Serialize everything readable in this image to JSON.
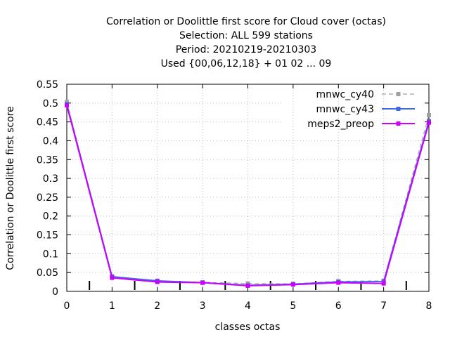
{
  "chart_data": {
    "type": "line",
    "title": [
      "Correlation or Doolittle first score  for Cloud cover (octas)",
      "Selection: ALL    599 stations",
      "Period: 20210219-20210303",
      "Used {00,06,12,18} + 01 02 ... 09"
    ],
    "xlabel": "classes octas",
    "ylabel": "Correlation or Doolittle first score",
    "xlim": [
      0,
      8
    ],
    "ylim": [
      0,
      0.55
    ],
    "x": [
      0,
      1,
      2,
      3,
      4,
      5,
      6,
      7,
      8
    ],
    "xticks": [
      "0",
      "1",
      "2",
      "3",
      "4",
      "5",
      "6",
      "7",
      "8"
    ],
    "yticks": [
      "0",
      "0.05",
      "0.1",
      "0.15",
      "0.2",
      "0.25",
      "0.3",
      "0.35",
      "0.4",
      "0.45",
      "0.5",
      "0.55"
    ],
    "ytick_values": [
      0,
      0.05,
      0.1,
      0.15,
      0.2,
      0.25,
      0.3,
      0.35,
      0.4,
      0.45,
      0.5,
      0.55
    ],
    "minor_xticks": [
      0.5,
      1.5,
      2.5,
      3.5,
      4.5,
      5.5,
      6.5,
      7.5
    ],
    "grid": true,
    "legend_position": "top-right",
    "series": [
      {
        "name": "mnwc_cy40",
        "color": "#a0a0a0",
        "dash": true,
        "marker": "square",
        "values": [
          0.503,
          0.04,
          0.027,
          0.024,
          0.021,
          0.02,
          0.027,
          0.028,
          0.468
        ]
      },
      {
        "name": "mnwc_cy43",
        "color": "#4169e1",
        "dash": false,
        "marker": "square",
        "values": [
          0.497,
          0.039,
          0.028,
          0.023,
          0.016,
          0.019,
          0.025,
          0.026,
          0.452
        ]
      },
      {
        "name": "meps2_preop",
        "color": "#cc00ff",
        "dash": false,
        "marker": "square",
        "values": [
          0.494,
          0.036,
          0.025,
          0.023,
          0.015,
          0.018,
          0.023,
          0.021,
          0.448
        ]
      }
    ]
  }
}
